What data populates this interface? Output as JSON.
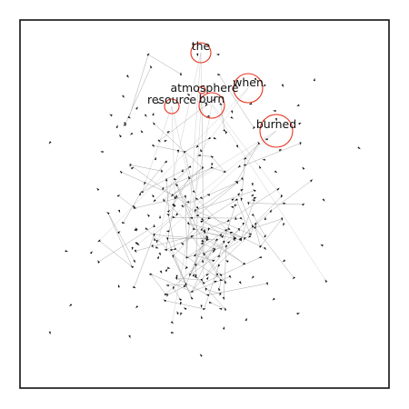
{
  "graph": {
    "highlighted_nodes": [
      {
        "label": "the",
        "weight": 0.55
      },
      {
        "label": "when",
        "weight": 0.8
      },
      {
        "label": "atmosphere",
        "weight": 0.25
      },
      {
        "label": "resource",
        "weight": 0.4
      },
      {
        "label": "burn",
        "weight": 0.7
      },
      {
        "label": "burned",
        "weight": 0.95
      }
    ],
    "colors": {
      "highlight_ring": "#e8321e",
      "edge": "#a8a8a8",
      "node": "#111111",
      "frame": "#111111"
    },
    "background_node_count": 300,
    "edge_style": "thin grey arrows"
  }
}
